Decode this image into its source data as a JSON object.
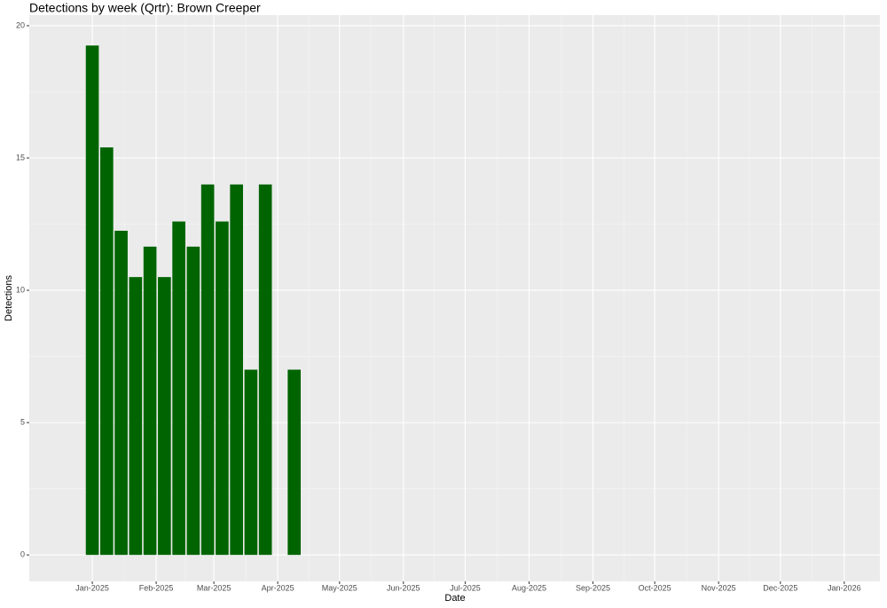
{
  "chart_data": {
    "type": "bar",
    "title": "Detections by week (Qrtr): Brown Creeper",
    "x_label": "Date",
    "y_label": "Detections",
    "x": [
      0,
      7,
      14,
      21,
      28,
      35,
      42,
      49,
      56,
      63,
      70,
      77,
      84,
      98
    ],
    "values": [
      19.25,
      15.4,
      12.25,
      10.5,
      11.65,
      10.5,
      12.6,
      11.65,
      14,
      12.6,
      14,
      7,
      14,
      7
    ],
    "color": "#006400",
    "xlim": [
      -30.6,
      382.3
    ],
    "xticks": [
      {
        "value": 0,
        "label": "Jan-2025"
      },
      {
        "value": 31,
        "label": "Feb-2025"
      },
      {
        "value": 59,
        "label": "Mar-2025"
      },
      {
        "value": 90,
        "label": "Apr-2025"
      },
      {
        "value": 120,
        "label": "May-2025"
      },
      {
        "value": 151,
        "label": "Jun-2025"
      },
      {
        "value": 181,
        "label": "Jul-2025"
      },
      {
        "value": 212,
        "label": "Aug-2025"
      },
      {
        "value": 243,
        "label": "Sep-2025"
      },
      {
        "value": 273,
        "label": "Oct-2025"
      },
      {
        "value": 304,
        "label": "Nov-2025"
      },
      {
        "value": 334,
        "label": "Dec-2025"
      },
      {
        "value": 365,
        "label": "Jan-2026"
      }
    ],
    "ylim": [
      -1,
      20.4
    ],
    "yticks": [
      0,
      5,
      10,
      15,
      20
    ],
    "grid": true
  }
}
